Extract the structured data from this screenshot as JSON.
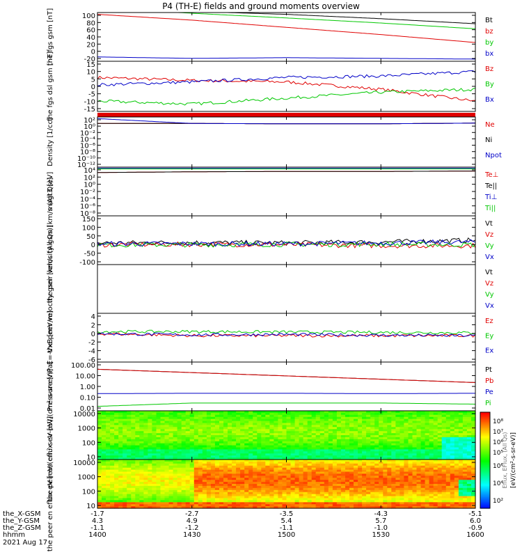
{
  "title": "P4 (TH-E) fields and ground moments overview",
  "colors": {
    "black": "#000000",
    "red": "#e00000",
    "green": "#00c800",
    "blue": "#0000c8"
  },
  "x_ticks_hhmm": [
    "1400",
    "1430",
    "1500",
    "1530",
    "1600"
  ],
  "footer": {
    "rows": [
      {
        "label": "the_X-GSM",
        "values": [
          "-1.7",
          "-2.7",
          "-3.5",
          "-4.3",
          "-5.1"
        ]
      },
      {
        "label": "the_Y-GSM",
        "values": [
          "4.3",
          "4.9",
          "5.4",
          "5.7",
          "6.0"
        ]
      },
      {
        "label": "the_Z-GSM",
        "values": [
          "-1.1",
          "-1.2",
          "-1.1",
          "-1.0",
          "-0.9"
        ]
      },
      {
        "label": "hhmm",
        "values": [
          "1400",
          "1430",
          "1500",
          "1530",
          "1600"
        ]
      }
    ],
    "date": "2021 Aug 17"
  },
  "colorbar": {
    "upper_ticks": [
      "10⁸",
      "10⁷",
      "10⁶",
      "10⁵"
    ],
    "lower_ticks": [
      "10⁶",
      "10⁴",
      "10²"
    ],
    "label": "[eV/(cm²-s-sr-eV)]",
    "label_ghost": "Eflux, EFlux, (All Qs)"
  },
  "chart_data": [
    {
      "type": "line",
      "ylabel": "the fgs gsm [nT]",
      "yticks": [
        "100",
        "80",
        "60",
        "40",
        "20",
        "0",
        "-20"
      ],
      "ylim": [
        -30,
        105
      ],
      "x": [
        1400,
        1430,
        1500,
        1530,
        1600
      ],
      "series": [
        {
          "name": "Bt",
          "color": "black",
          "values": [
            118,
            108,
            100,
            88,
            74
          ]
        },
        {
          "name": "bz",
          "color": "red",
          "values": [
            100,
            84,
            64,
            44,
            22
          ]
        },
        {
          "name": "by",
          "color": "green",
          "values": [
            118,
            103,
            90,
            76,
            60
          ]
        },
        {
          "name": "bx",
          "color": "blue",
          "values": [
            -18,
            -22,
            -20,
            -22,
            -24
          ]
        }
      ]
    },
    {
      "type": "line",
      "ylabel": "the fgs dsl gsm [nT]",
      "yticks": [
        "15",
        "10",
        "5",
        "0",
        "-5",
        "-10",
        "-15"
      ],
      "ylim": [
        -17,
        17
      ],
      "x": [
        1400,
        1430,
        1500,
        1530,
        1600
      ],
      "series": [
        {
          "name": "Bz",
          "color": "red",
          "values": [
            6,
            4,
            3,
            -2,
            -10
          ]
        },
        {
          "name": "By",
          "color": "green",
          "values": [
            -10,
            -12,
            -8,
            -4,
            -2
          ]
        },
        {
          "name": "Bx",
          "color": "blue",
          "values": [
            1,
            3,
            6,
            7,
            10
          ]
        }
      ]
    },
    {
      "type": "line",
      "ylabel": "Density [1/cc]",
      "yticks": [
        "10²",
        "10⁰",
        "10⁻²",
        "10⁻⁴",
        "10⁻⁶",
        "10⁻⁸",
        "10⁻¹⁰",
        "10⁻¹²"
      ],
      "ylim": [
        -13,
        2.5
      ],
      "log": true,
      "x": [
        1400,
        1430,
        1500,
        1530,
        1600
      ],
      "series": [
        {
          "name": "Ne",
          "color": "red",
          "values": [
            0.5,
            0.5,
            0.4,
            0.4,
            0.6
          ]
        },
        {
          "name": "Ni",
          "color": "black",
          "values": [
            0.5,
            0.5,
            0.4,
            0.4,
            0.6
          ]
        },
        {
          "name": "Npot",
          "color": "blue",
          "values": [
            2,
            0.5,
            0.4,
            0.4,
            0.6
          ]
        }
      ]
    },
    {
      "type": "line",
      "ylabel": "magt3 [eV]",
      "yticks": [
        "10⁴",
        "10²",
        "10⁰",
        "10⁻²",
        "10⁻⁴",
        "10⁻⁶",
        "10⁻⁸"
      ],
      "ylim": [
        -9,
        4.5
      ],
      "log": true,
      "x": [
        1400,
        1430,
        1500,
        1530,
        1600
      ],
      "series": [
        {
          "name": "Te⊥",
          "color": "red",
          "values": [
            3.0,
            3.2,
            3.3,
            3.3,
            3.4
          ]
        },
        {
          "name": "Te||",
          "color": "black",
          "values": [
            3.0,
            3.2,
            3.3,
            3.3,
            3.4
          ]
        },
        {
          "name": "Ti⊥",
          "color": "blue",
          "values": [
            4.2,
            4.2,
            4.2,
            4.2,
            4.2
          ]
        },
        {
          "name": "Ti||",
          "color": "green",
          "values": [
            4.0,
            4.0,
            4.0,
            4.0,
            4.0
          ]
        }
      ]
    },
    {
      "type": "line",
      "ylabel": "the peir velocity gsm [km/s (All Qs)]",
      "yticks": [
        "150",
        "100",
        "50",
        "0",
        "-50",
        "-100"
      ],
      "ylim": [
        -110,
        160
      ],
      "x": [
        1400,
        1430,
        1500,
        1530,
        1600
      ],
      "series": [
        {
          "name": "Vt",
          "color": "black",
          "values": [
            10,
            12,
            10,
            15,
            25
          ]
        },
        {
          "name": "Vz",
          "color": "red",
          "values": [
            0,
            2,
            0,
            -5,
            -5
          ]
        },
        {
          "name": "Vy",
          "color": "green",
          "values": [
            0,
            0,
            2,
            3,
            0
          ]
        },
        {
          "name": "Vx",
          "color": "blue",
          "values": [
            5,
            5,
            5,
            10,
            15
          ]
        }
      ]
    },
    {
      "type": "line",
      "ylabel": "the peer velocity gsm [km/s (All Qs)]",
      "yticks": [],
      "ylim": [
        -1,
        1
      ],
      "x": [],
      "series": [
        {
          "name": "Vt",
          "color": "black",
          "values": []
        },
        {
          "name": "Vz",
          "color": "red",
          "values": []
        },
        {
          "name": "Vy",
          "color": "green",
          "values": []
        },
        {
          "name": "Vx",
          "color": "blue",
          "values": []
        }
      ]
    },
    {
      "type": "line",
      "ylabel": "E=-VxB [mV/m]",
      "yticks": [
        "4",
        "2",
        "0",
        "-2",
        "-4",
        "-6"
      ],
      "ylim": [
        -7,
        5
      ],
      "x": [
        1400,
        1430,
        1500,
        1530,
        1600
      ],
      "series": [
        {
          "name": "Ez",
          "color": "red",
          "values": [
            0,
            -0.5,
            -0.5,
            -0.5,
            -0.5
          ]
        },
        {
          "name": "Ey",
          "color": "green",
          "values": [
            0.5,
            0.5,
            0.4,
            0.3,
            0.2
          ]
        },
        {
          "name": "Ex",
          "color": "blue",
          "values": [
            0,
            -0.3,
            -0.2,
            -0.4,
            -0.5
          ]
        }
      ]
    },
    {
      "type": "line",
      "ylabel": "Pressure [nPa]",
      "yticks": [
        "100.00",
        "10.00",
        "1.00",
        "0.10",
        "0.01"
      ],
      "ylim": [
        -2.2,
        2.2
      ],
      "log": true,
      "x": [
        1400,
        1430,
        1500,
        1530,
        1600
      ],
      "series": [
        {
          "name": "Pt",
          "color": "black",
          "values": [
            1.55,
            1.25,
            0.95,
            0.65,
            0.35
          ]
        },
        {
          "name": "Pb",
          "color": "red",
          "values": [
            1.55,
            1.25,
            0.95,
            0.65,
            0.35
          ]
        },
        {
          "name": "Pe",
          "color": "blue",
          "values": [
            -0.65,
            -0.62,
            -0.62,
            -0.65,
            -0.62
          ]
        },
        {
          "name": "Pi",
          "color": "green",
          "values": [
            -1.8,
            -1.5,
            -1.5,
            -1.5,
            -1.6
          ]
        }
      ]
    },
    {
      "type": "heatmap",
      "ylabel": "the peir en eflux eV [eV/(cm²-s-sr-eV)]",
      "yticks": [
        "10000",
        "1000",
        "100",
        "10"
      ],
      "ylim": [
        0.8,
        4.4
      ],
      "log": true
    },
    {
      "type": "heatmap",
      "ylabel": "the peer en eflux eV [eV/(cm²-s-sr-eV)]",
      "yticks": [
        "10000",
        "1000",
        "100",
        "10"
      ],
      "ylim": [
        0.8,
        4.4
      ],
      "log": true
    }
  ]
}
